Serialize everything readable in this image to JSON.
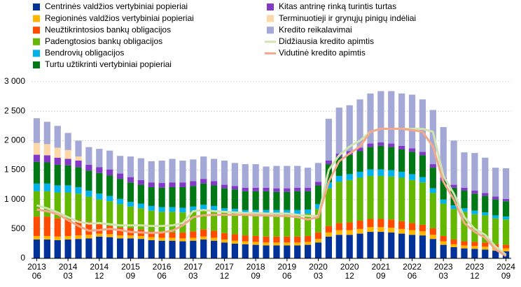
{
  "chart_data": {
    "type": "stacked-bar",
    "categories": [
      "2013\n06",
      null,
      null,
      "2014\n03",
      null,
      null,
      "2014\n12",
      null,
      null,
      "2015\n09",
      null,
      null,
      "2016\n06",
      null,
      null,
      "2017\n03",
      null,
      null,
      "2017\n12",
      null,
      null,
      "2018\n09",
      null,
      null,
      "2019\n06",
      null,
      null,
      "2020\n03",
      null,
      null,
      "2020\n12",
      null,
      null,
      "2021\n09",
      null,
      null,
      "2022\n06",
      null,
      null,
      "2023\n03",
      null,
      null,
      "2023\n12",
      null,
      null,
      "2024\n09"
    ],
    "series": [
      {
        "name": "Centrinės valdžios vertybiniai popieriai",
        "color": "#003299",
        "values": [
          320,
          320,
          310,
          320,
          330,
          340,
          370,
          360,
          340,
          340,
          330,
          310,
          300,
          300,
          290,
          300,
          320,
          300,
          270,
          250,
          240,
          230,
          220,
          220,
          220,
          220,
          230,
          270,
          370,
          400,
          400,
          420,
          450,
          450,
          440,
          420,
          400,
          390,
          330,
          230,
          190,
          170,
          160,
          150,
          130,
          120
        ]
      },
      {
        "name": "Regioninės valdžios vertybiniai popieriai",
        "color": "#ffb400",
        "values": [
          60,
          60,
          60,
          60,
          60,
          60,
          50,
          50,
          50,
          50,
          50,
          50,
          50,
          50,
          50,
          50,
          50,
          50,
          50,
          50,
          50,
          50,
          50,
          50,
          50,
          50,
          50,
          60,
          70,
          80,
          80,
          80,
          80,
          80,
          80,
          80,
          80,
          70,
          70,
          60,
          50,
          50,
          50,
          50,
          50,
          50
        ]
      },
      {
        "name": "Neužtikrintosios bankų obligacijos",
        "color": "#ff4b00",
        "values": [
          330,
          330,
          310,
          290,
          260,
          220,
          160,
          140,
          130,
          120,
          110,
          100,
          90,
          90,
          100,
          110,
          120,
          120,
          110,
          110,
          100,
          100,
          100,
          100,
          100,
          100,
          100,
          110,
          110,
          120,
          130,
          140,
          140,
          140,
          140,
          130,
          120,
          110,
          110,
          90,
          80,
          70,
          70,
          70,
          60,
          60
        ]
      },
      {
        "name": "Padengtosios bankų obligacijos",
        "color": "#65b800",
        "values": [
          430,
          430,
          440,
          450,
          450,
          430,
          420,
          420,
          400,
          370,
          360,
          350,
          350,
          350,
          340,
          340,
          340,
          340,
          350,
          360,
          360,
          370,
          380,
          380,
          380,
          380,
          380,
          400,
          640,
          700,
          720,
          730,
          730,
          730,
          730,
          740,
          730,
          720,
          600,
          550,
          520,
          500,
          470,
          460,
          440,
          430
        ]
      },
      {
        "name": "Bendrovių obligacijos",
        "color": "#00b1ea",
        "values": [
          130,
          130,
          120,
          120,
          110,
          100,
          100,
          90,
          90,
          80,
          80,
          80,
          80,
          80,
          80,
          80,
          80,
          80,
          70,
          70,
          70,
          70,
          70,
          70,
          70,
          70,
          70,
          80,
          100,
          100,
          100,
          100,
          110,
          110,
          110,
          100,
          100,
          90,
          80,
          70,
          60,
          60,
          60,
          50,
          50,
          50
        ]
      },
      {
        "name": "Turtu užtikrinti vertybiniai popieriai",
        "color": "#007816",
        "values": [
          370,
          360,
          350,
          340,
          340,
          340,
          350,
          350,
          340,
          330,
          320,
          320,
          330,
          340,
          350,
          350,
          360,
          350,
          340,
          330,
          320,
          320,
          320,
          310,
          310,
          320,
          310,
          320,
          310,
          320,
          330,
          350,
          380,
          400,
          390,
          380,
          380,
          370,
          350,
          320,
          300,
          300,
          290,
          280,
          270,
          260
        ]
      },
      {
        "name": "Kitas antrinę rinką turintis turtas",
        "color": "#8139c6",
        "values": [
          120,
          120,
          120,
          110,
          110,
          100,
          100,
          100,
          90,
          90,
          80,
          80,
          80,
          80,
          80,
          80,
          80,
          70,
          60,
          60,
          60,
          60,
          60,
          60,
          60,
          60,
          60,
          60,
          60,
          60,
          60,
          60,
          60,
          60,
          60,
          60,
          60,
          60,
          60,
          50,
          50,
          50,
          50,
          50,
          50,
          40
        ]
      },
      {
        "name": "Terminuotieji ir grynųjų pinigų indėliai",
        "color": "#fcd8a8",
        "values": [
          200,
          190,
          170,
          150,
          70,
          0,
          0,
          0,
          0,
          0,
          0,
          0,
          0,
          0,
          0,
          0,
          0,
          0,
          0,
          0,
          0,
          0,
          0,
          0,
          0,
          0,
          0,
          0,
          0,
          0,
          0,
          0,
          0,
          0,
          0,
          0,
          0,
          0,
          0,
          0,
          0,
          0,
          0,
          0,
          0,
          0
        ]
      },
      {
        "name": "Kredito reikalavimai",
        "color": "#a4a8d6",
        "values": [
          420,
          380,
          370,
          290,
          270,
          300,
          310,
          320,
          300,
          350,
          370,
          360,
          380,
          400,
          370,
          370,
          380,
          380,
          410,
          390,
          400,
          400,
          360,
          380,
          380,
          370,
          340,
          320,
          710,
          780,
          780,
          820,
          850,
          870,
          890,
          890,
          910,
          890,
          920,
          860,
          750,
          600,
          640,
          600,
          490,
          520
        ]
      }
    ],
    "lines": [
      {
        "name": "Didžiausia kredito apimtis",
        "color": "#cfe4b0",
        "values": [
          900,
          850,
          780,
          700,
          620,
          590,
          600,
          580,
          560,
          560,
          560,
          550,
          550,
          560,
          600,
          800,
          820,
          800,
          790,
          780,
          770,
          770,
          760,
          760,
          760,
          740,
          720,
          720,
          1500,
          1750,
          1900,
          2000,
          2150,
          2200,
          2200,
          2200,
          2200,
          2200,
          2150,
          1400,
          1100,
          700,
          500,
          400,
          200,
          60
        ]
      },
      {
        "name": "Vidutinė kredito apimtis",
        "color": "#f2a98a",
        "values": [
          830,
          800,
          750,
          650,
          550,
          470,
          480,
          500,
          480,
          450,
          440,
          430,
          440,
          470,
          560,
          700,
          730,
          740,
          740,
          740,
          740,
          730,
          730,
          720,
          720,
          700,
          660,
          700,
          1300,
          1650,
          1780,
          1900,
          2150,
          2200,
          2200,
          2200,
          2180,
          2150,
          1900,
          1300,
          1000,
          600,
          450,
          350,
          150,
          40
        ]
      }
    ],
    "ylim": [
      0,
      3000
    ],
    "yticks": [
      0,
      500,
      {
        "value": 1000,
        "label": "1 000"
      },
      {
        "value": 1500,
        "label": "1 500"
      },
      {
        "value": 2000,
        "label": "2 000"
      },
      {
        "value": 2500,
        "label": "2 500"
      },
      {
        "value": 3000,
        "label": "3 000"
      }
    ],
    "grid": true
  }
}
